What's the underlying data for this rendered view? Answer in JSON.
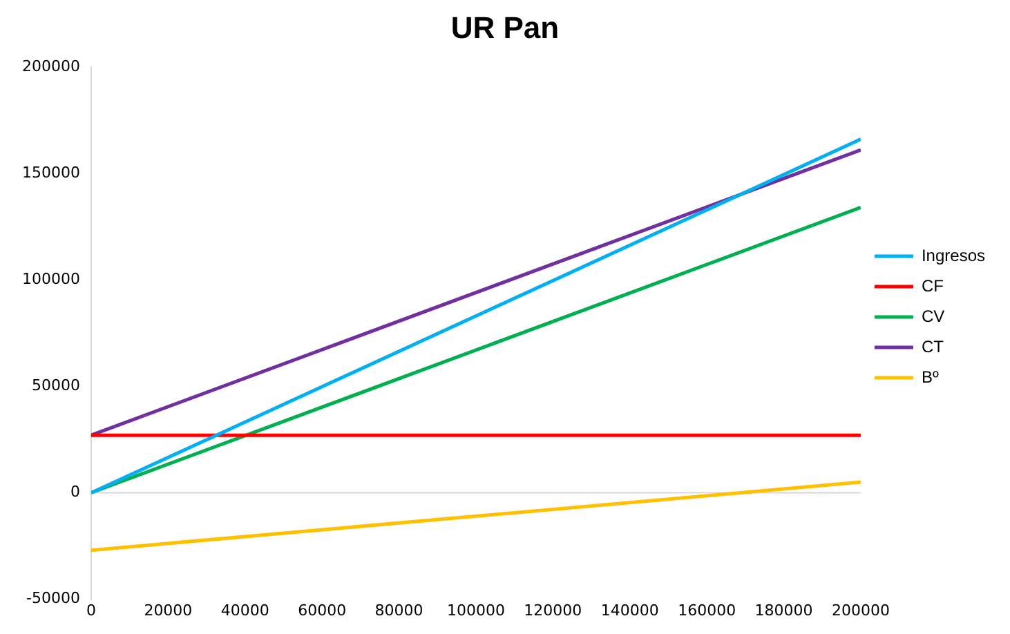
{
  "chart_data": {
    "type": "line",
    "title": "UR Pan",
    "x": [
      0,
      200000
    ],
    "series": [
      {
        "name": "Ingresos",
        "color": "#00b0f0",
        "values": [
          0,
          166000
        ]
      },
      {
        "name": "CF",
        "color": "#ff0000",
        "values": [
          27000,
          27000
        ]
      },
      {
        "name": "CV",
        "color": "#00b050",
        "values": [
          0,
          134000
        ]
      },
      {
        "name": "CT",
        "color": "#7030a0",
        "values": [
          27000,
          161000
        ]
      },
      {
        "name": "Bº",
        "color": "#ffc000",
        "values": [
          -27000,
          5000
        ]
      }
    ],
    "xlim": [
      0,
      200000
    ],
    "xticks": [
      0,
      20000,
      40000,
      60000,
      80000,
      100000,
      120000,
      140000,
      160000,
      180000,
      200000
    ],
    "ylim": [
      -50000,
      200000
    ],
    "yticks": [
      -50000,
      0,
      50000,
      100000,
      150000,
      200000
    ],
    "ref_lines": [
      {
        "axis": "y",
        "value": 0,
        "color": "#d9d9d9"
      }
    ],
    "grid": false,
    "legend": "right",
    "marker": "none",
    "line_style": "solid"
  }
}
